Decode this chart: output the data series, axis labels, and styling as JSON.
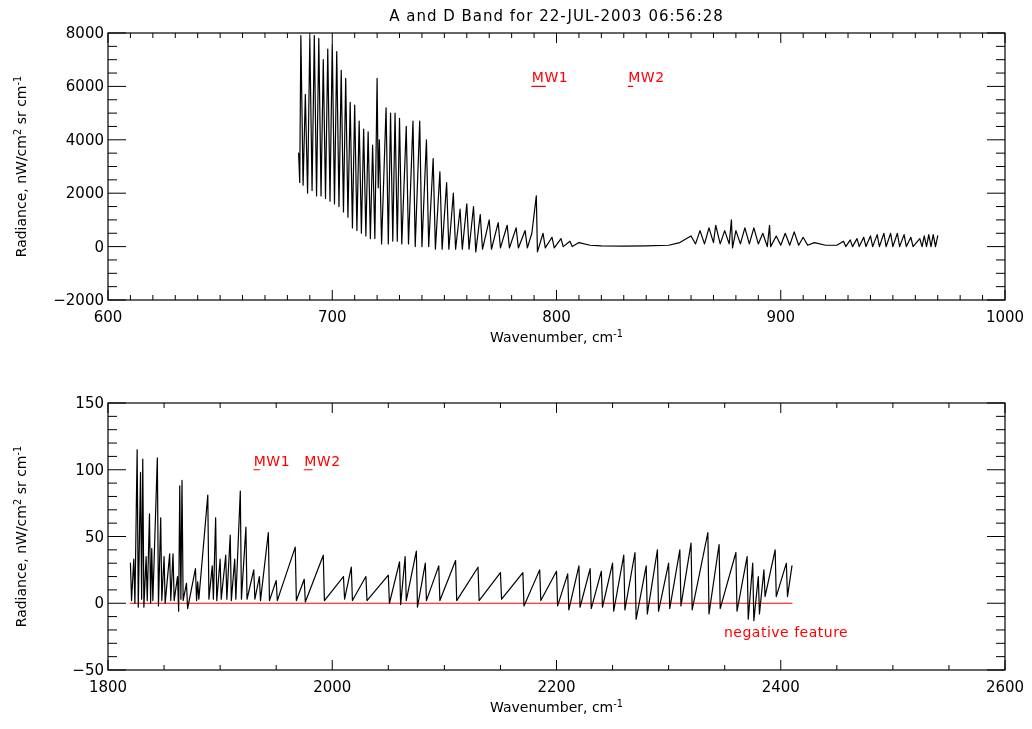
{
  "chart_data": [
    {
      "type": "line",
      "title": "A and D Band for 22-JUL-2003 06:56:28",
      "xlabel": "Wavenumber, cm$^{-1}$",
      "ylabel": "Radiance, nW/cm$^{2}$ sr cm$^{-1}$",
      "xlim": [
        600,
        1000
      ],
      "ylim": [
        -2000,
        8000
      ],
      "xticks": [
        600,
        {
          "value": 610,
          "label": null
        },
        {
          "value": 620,
          "label": null
        },
        {
          "value": 630,
          "label": null
        },
        {
          "value": 640,
          "label": null
        },
        {
          "value": 650,
          "label": null
        },
        {
          "value": 660,
          "label": null
        },
        {
          "value": 670,
          "label": null
        },
        {
          "value": 680,
          "label": null
        },
        {
          "value": 690,
          "label": null
        },
        700,
        {
          "value": 710,
          "label": null
        },
        {
          "value": 720,
          "label": null
        },
        {
          "value": 730,
          "label": null
        },
        {
          "value": 740,
          "label": null
        },
        {
          "value": 750,
          "label": null
        },
        {
          "value": 760,
          "label": null
        },
        {
          "value": 770,
          "label": null
        },
        {
          "value": 780,
          "label": null
        },
        {
          "value": 790,
          "label": null
        },
        800,
        {
          "value": 810,
          "label": null
        },
        {
          "value": 820,
          "label": null
        },
        {
          "value": 830,
          "label": null
        },
        {
          "value": 840,
          "label": null
        },
        {
          "value": 850,
          "label": null
        },
        {
          "value": 860,
          "label": null
        },
        {
          "value": 870,
          "label": null
        },
        {
          "value": 880,
          "label": null
        },
        {
          "value": 890,
          "label": null
        },
        900,
        {
          "value": 910,
          "label": null
        },
        {
          "value": 920,
          "label": null
        },
        {
          "value": 930,
          "label": null
        },
        {
          "value": 940,
          "label": null
        },
        {
          "value": 950,
          "label": null
        },
        {
          "value": 960,
          "label": null
        },
        {
          "value": 970,
          "label": null
        },
        {
          "value": 980,
          "label": null
        },
        {
          "value": 990,
          "label": null
        },
        1000
      ],
      "yticks": [
        -2000,
        {
          "value": -1500,
          "label": null
        },
        {
          "value": -1000,
          "label": null
        },
        {
          "value": -500,
          "label": null
        },
        0,
        {
          "value": 500,
          "label": null
        },
        {
          "value": 1000,
          "label": null
        },
        {
          "value": 1500,
          "label": null
        },
        2000,
        {
          "value": 2500,
          "label": null
        },
        {
          "value": 3000,
          "label": null
        },
        {
          "value": 3500,
          "label": null
        },
        4000,
        {
          "value": 4500,
          "label": null
        },
        {
          "value": 5000,
          "label": null
        },
        {
          "value": 5500,
          "label": null
        },
        6000,
        {
          "value": 6500,
          "label": null
        },
        {
          "value": 7000,
          "label": null
        },
        {
          "value": 7500,
          "label": null
        },
        8000
      ],
      "series": [
        {
          "color": "#000000",
          "x": [
            685,
            685.5,
            686,
            687,
            688,
            689,
            690,
            691,
            692,
            693,
            694,
            695,
            696,
            697,
            698,
            699,
            700,
            701,
            702,
            703,
            704,
            705,
            706,
            707,
            708,
            709,
            710,
            711,
            712,
            713,
            714,
            715,
            716,
            717,
            718,
            719,
            720,
            720.5,
            721,
            722,
            724,
            725,
            726,
            727,
            728,
            729,
            730,
            731,
            733,
            734,
            736,
            737,
            739,
            740,
            742,
            743,
            745,
            746,
            748,
            749,
            751,
            752,
            754,
            755,
            757,
            758,
            760,
            761,
            763,
            764,
            766,
            767,
            770,
            771,
            774,
            775,
            778,
            779,
            782,
            783,
            786,
            787,
            789,
            791,
            791.5,
            794,
            795,
            798,
            799,
            802,
            803,
            806,
            807,
            810,
            815,
            820,
            830,
            840,
            850,
            855,
            858,
            860,
            862,
            864,
            866,
            868,
            870,
            871,
            873,
            875,
            877,
            878,
            878.5,
            880,
            882,
            884,
            886,
            888,
            890,
            892,
            894,
            895,
            895.5,
            898,
            900,
            902,
            904,
            906,
            908,
            910,
            912,
            915,
            920,
            925,
            928,
            929,
            931,
            932,
            934,
            935,
            937,
            938,
            940,
            941,
            943,
            944,
            946,
            947,
            949,
            950,
            952,
            953,
            955,
            956,
            958,
            959,
            962,
            963,
            964,
            965,
            966,
            967,
            968,
            969,
            970
          ],
          "values": [
            3500,
            2400,
            7900,
            2300,
            5700,
            2000,
            7800,
            2100,
            7900,
            1900,
            7800,
            1900,
            7000,
            1800,
            7400,
            1700,
            7600,
            1600,
            7300,
            1500,
            6600,
            1300,
            6300,
            1100,
            5400,
            700,
            5300,
            600,
            4700,
            500,
            4400,
            400,
            4300,
            300,
            3800,
            300,
            6300,
            2200,
            4000,
            100,
            5200,
            100,
            5000,
            200,
            5000,
            200,
            4800,
            100,
            4500,
            100,
            4700,
            0,
            4700,
            0,
            4000,
            0,
            3300,
            -100,
            2800,
            -100,
            2400,
            -100,
            2000,
            -100,
            1400,
            -100,
            1600,
            -100,
            1500,
            -200,
            1200,
            -100,
            1000,
            -100,
            900,
            -50,
            800,
            -50,
            700,
            -50,
            600,
            -50,
            500,
            1900,
            -200,
            500,
            -50,
            350,
            -50,
            300,
            0,
            200,
            0,
            150,
            50,
            30,
            20,
            30,
            50,
            150,
            300,
            400,
            100,
            600,
            100,
            700,
            150,
            800,
            100,
            600,
            100,
            1000,
            -50,
            600,
            100,
            700,
            100,
            700,
            100,
            500,
            0,
            800,
            0,
            400,
            50,
            500,
            50,
            550,
            50,
            350,
            50,
            150,
            50,
            50,
            200,
            0,
            250,
            0,
            300,
            0,
            350,
            0,
            400,
            0,
            450,
            0,
            500,
            0,
            500,
            0,
            500,
            0,
            450,
            0,
            350,
            0,
            300,
            0,
            400,
            0,
            450,
            0,
            450,
            0,
            400
          ]
        },
        {
          "color": "#ff0000",
          "x": [
            789,
            795
          ],
          "values": [
            6000,
            6000
          ]
        },
        {
          "color": "#ff0000",
          "x": [
            832,
            834
          ],
          "values": [
            6000,
            6000
          ]
        }
      ],
      "annotations": [
        {
          "text": "MW1",
          "x": 789,
          "y": 6000
        },
        {
          "text": "MW2",
          "x": 832,
          "y": 6000
        }
      ]
    },
    {
      "type": "line",
      "xlabel": "Wavenumber, cm$^{-1}$",
      "ylabel": "Radiance, nW/cm$^{2}$ sr cm$^{-1}$",
      "xlim": [
        1800,
        2600
      ],
      "ylim": [
        -50,
        150
      ],
      "xticks": [
        1800,
        {
          "value": 1850,
          "label": null
        },
        {
          "value": 1900,
          "label": null
        },
        {
          "value": 1950,
          "label": null
        },
        2000,
        {
          "value": 2050,
          "label": null
        },
        {
          "value": 2100,
          "label": null
        },
        {
          "value": 2150,
          "label": null
        },
        2200,
        {
          "value": 2250,
          "label": null
        },
        {
          "value": 2300,
          "label": null
        },
        {
          "value": 2350,
          "label": null
        },
        2400,
        {
          "value": 2450,
          "label": null
        },
        {
          "value": 2500,
          "label": null
        },
        {
          "value": 2550,
          "label": null
        },
        2600
      ],
      "yticks": [
        -50,
        {
          "value": -40,
          "label": null
        },
        {
          "value": -30,
          "label": null
        },
        {
          "value": -20,
          "label": null
        },
        {
          "value": -10,
          "label": null
        },
        0,
        {
          "value": 10,
          "label": null
        },
        {
          "value": 20,
          "label": null
        },
        {
          "value": 30,
          "label": null
        },
        {
          "value": 40,
          "label": null
        },
        50,
        {
          "value": 60,
          "label": null
        },
        {
          "value": 70,
          "label": null
        },
        {
          "value": 80,
          "label": null
        },
        {
          "value": 90,
          "label": null
        },
        100,
        {
          "value": 110,
          "label": null
        },
        {
          "value": 120,
          "label": null
        },
        {
          "value": 130,
          "label": null
        },
        {
          "value": 140,
          "label": null
        },
        150
      ],
      "series": [
        {
          "color": "#ff0000",
          "x": [
            1820,
            2410
          ],
          "values": [
            0,
            0
          ]
        },
        {
          "color": "#000000",
          "x": [
            1820,
            1821,
            1823,
            1824,
            1826,
            1827,
            1829,
            1830,
            1831,
            1832,
            1834,
            1835,
            1837,
            1838,
            1839,
            1840,
            1844,
            1845,
            1847,
            1848,
            1850,
            1851,
            1855,
            1856,
            1858,
            1859,
            1862,
            1863,
            1864,
            1865,
            1866,
            1867,
            1870,
            1871,
            1878,
            1879,
            1880,
            1881,
            1889,
            1890,
            1893,
            1894,
            1896,
            1897,
            1900,
            1901,
            1905,
            1906,
            1909,
            1910,
            1913,
            1914,
            1918,
            1919,
            1923,
            1924,
            1930,
            1931,
            1935,
            1936,
            1943,
            1944,
            1950,
            1951,
            1967,
            1968,
            1975,
            1976,
            1992,
            1993,
            2010,
            2011,
            2017,
            2018,
            2030,
            2031,
            2050,
            2051,
            2060,
            2061,
            2065,
            2066,
            2075,
            2076,
            2083,
            2084,
            2095,
            2096,
            2110,
            2111,
            2130,
            2131,
            2150,
            2151,
            2170,
            2171,
            2185,
            2186,
            2200,
            2201,
            2210,
            2211,
            2220,
            2221,
            2230,
            2231,
            2240,
            2241,
            2250,
            2251,
            2260,
            2261,
            2270,
            2271,
            2280,
            2281,
            2290,
            2291,
            2300,
            2301,
            2310,
            2311,
            2320,
            2321,
            2335,
            2336,
            2345,
            2346,
            2360,
            2361,
            2370,
            2371,
            2375,
            2376,
            2380,
            2381,
            2385,
            2386,
            2395,
            2396,
            2405,
            2406,
            2410
          ],
          "values": [
            30,
            2,
            33,
            0,
            115,
            -3,
            98,
            3,
            108,
            -3,
            35,
            2,
            67,
            0,
            41,
            2,
            109,
            -2,
            64,
            2,
            35,
            0,
            37,
            2,
            37,
            2,
            20,
            -6,
            88,
            3,
            92,
            2,
            15,
            -4,
            26,
            2,
            16,
            3,
            81,
            3,
            28,
            3,
            64,
            2,
            33,
            3,
            36,
            3,
            51,
            2,
            33,
            3,
            84,
            3,
            57,
            3,
            25,
            3,
            20,
            2,
            53,
            2,
            17,
            2,
            42,
            2,
            18,
            1,
            36,
            2,
            20,
            3,
            27,
            2,
            20,
            2,
            21,
            0,
            31,
            -1,
            35,
            2,
            39,
            -3,
            30,
            2,
            28,
            2,
            32,
            2,
            27,
            2,
            23,
            3,
            23,
            -2,
            25,
            2,
            24,
            -2,
            22,
            -5,
            28,
            -3,
            26,
            -4,
            24,
            -3,
            30,
            -6,
            36,
            -5,
            38,
            -12,
            28,
            -8,
            40,
            -6,
            30,
            -4,
            40,
            -2,
            45,
            -5,
            53,
            -8,
            44,
            -4,
            38,
            -6,
            35,
            -12,
            30,
            -13,
            20,
            -8,
            25,
            5,
            40,
            5,
            30,
            5,
            28
          ]
        },
        {
          "color": "#ff0000",
          "x": [
            1930,
            1935
          ],
          "values": [
            100,
            100
          ]
        },
        {
          "color": "#ff0000",
          "x": [
            1975,
            1982
          ],
          "values": [
            100,
            100
          ]
        }
      ],
      "annotations": [
        {
          "text": "MW1",
          "x": 1930,
          "y": 100
        },
        {
          "text": "MW2",
          "x": 1975,
          "y": 100
        },
        "negative feature"
      ]
    }
  ]
}
